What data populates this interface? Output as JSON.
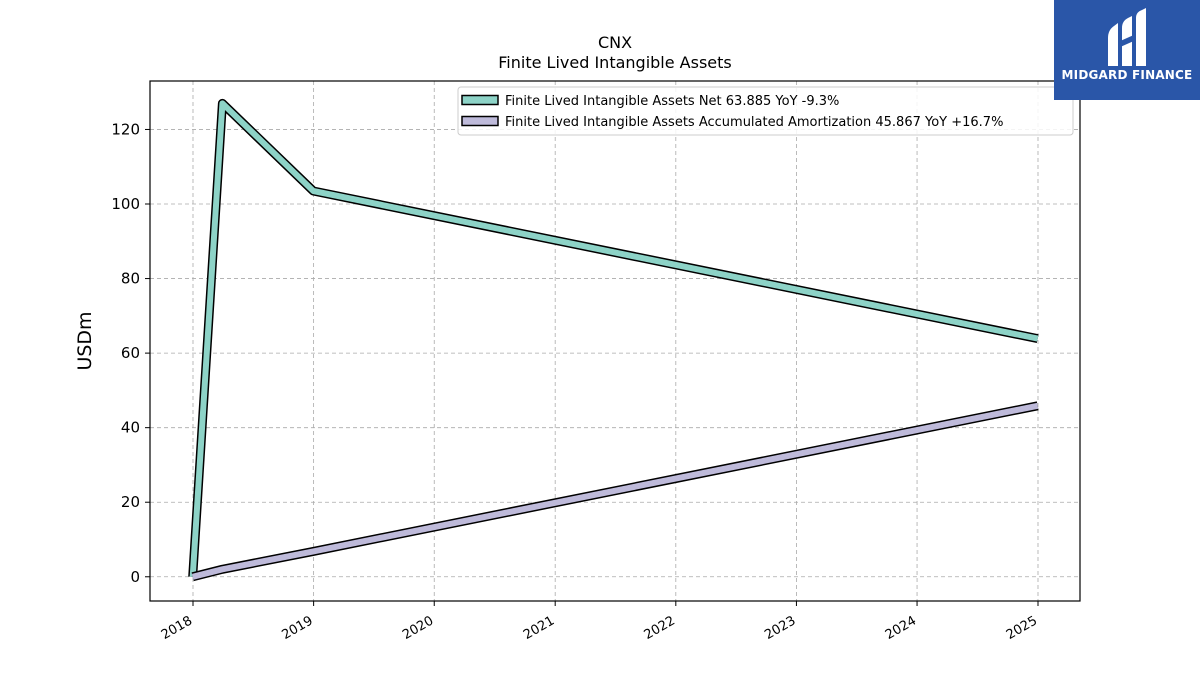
{
  "logo": {
    "text": "MIDGARD FINANCE",
    "background": "#2a56a8"
  },
  "chart_data": {
    "type": "line",
    "title": "CNX",
    "subtitle": "Finite Lived Intangible Assets",
    "ylabel": "USDm",
    "xlabel": "",
    "ylim": [
      -6.5,
      133
    ],
    "y_ticks": [
      0,
      20,
      40,
      60,
      80,
      100,
      120
    ],
    "x_ticks": [
      "2018",
      "2019",
      "2020",
      "2021",
      "2022",
      "2023",
      "2024",
      "2025"
    ],
    "grid": true,
    "legend_position": "top-right",
    "series": [
      {
        "name": "Finite Lived Intangible Assets Net  63.885 YoY -9.3%",
        "color": "#8dd3c7",
        "points": [
          {
            "x": "2017-12-31",
            "y": 0
          },
          {
            "x": "2018-03-31",
            "y": 127
          },
          {
            "x": "2018-12-31",
            "y": 103.5
          },
          {
            "x": "2024-12-31",
            "y": 63.885
          }
        ]
      },
      {
        "name": "Finite Lived Intangible Assets Accumulated Amortization  45.867 YoY +16.7%",
        "color": "#bebada",
        "points": [
          {
            "x": "2017-12-31",
            "y": 0
          },
          {
            "x": "2018-03-31",
            "y": 2
          },
          {
            "x": "2018-12-31",
            "y": 6.8
          },
          {
            "x": "2024-12-31",
            "y": 45.867
          }
        ]
      }
    ]
  }
}
